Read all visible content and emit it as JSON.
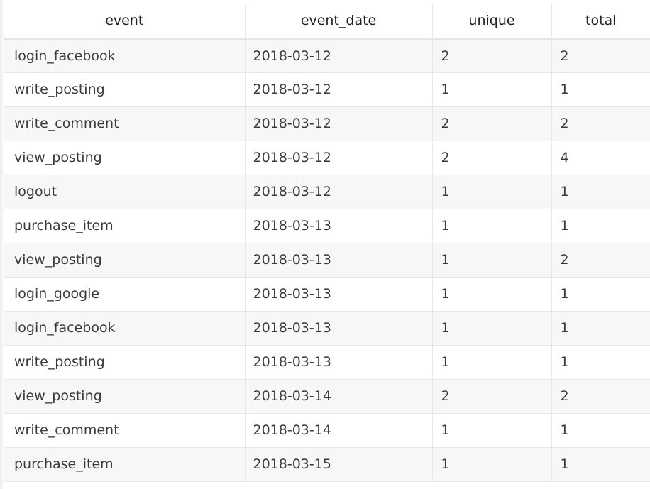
{
  "table": {
    "columns": [
      "event",
      "event_date",
      "unique",
      "total"
    ],
    "rows": [
      [
        "login_facebook",
        "2018-03-12",
        "2",
        "2"
      ],
      [
        "write_posting",
        "2018-03-12",
        "1",
        "1"
      ],
      [
        "write_comment",
        "2018-03-12",
        "2",
        "2"
      ],
      [
        "view_posting",
        "2018-03-12",
        "2",
        "4"
      ],
      [
        "logout",
        "2018-03-12",
        "1",
        "1"
      ],
      [
        "purchase_item",
        "2018-03-13",
        "1",
        "1"
      ],
      [
        "view_posting",
        "2018-03-13",
        "1",
        "2"
      ],
      [
        "login_google",
        "2018-03-13",
        "1",
        "1"
      ],
      [
        "login_facebook",
        "2018-03-13",
        "1",
        "1"
      ],
      [
        "write_posting",
        "2018-03-13",
        "1",
        "1"
      ],
      [
        "view_posting",
        "2018-03-14",
        "2",
        "2"
      ],
      [
        "write_comment",
        "2018-03-14",
        "1",
        "1"
      ],
      [
        "purchase_item",
        "2018-03-15",
        "1",
        "1"
      ]
    ]
  }
}
